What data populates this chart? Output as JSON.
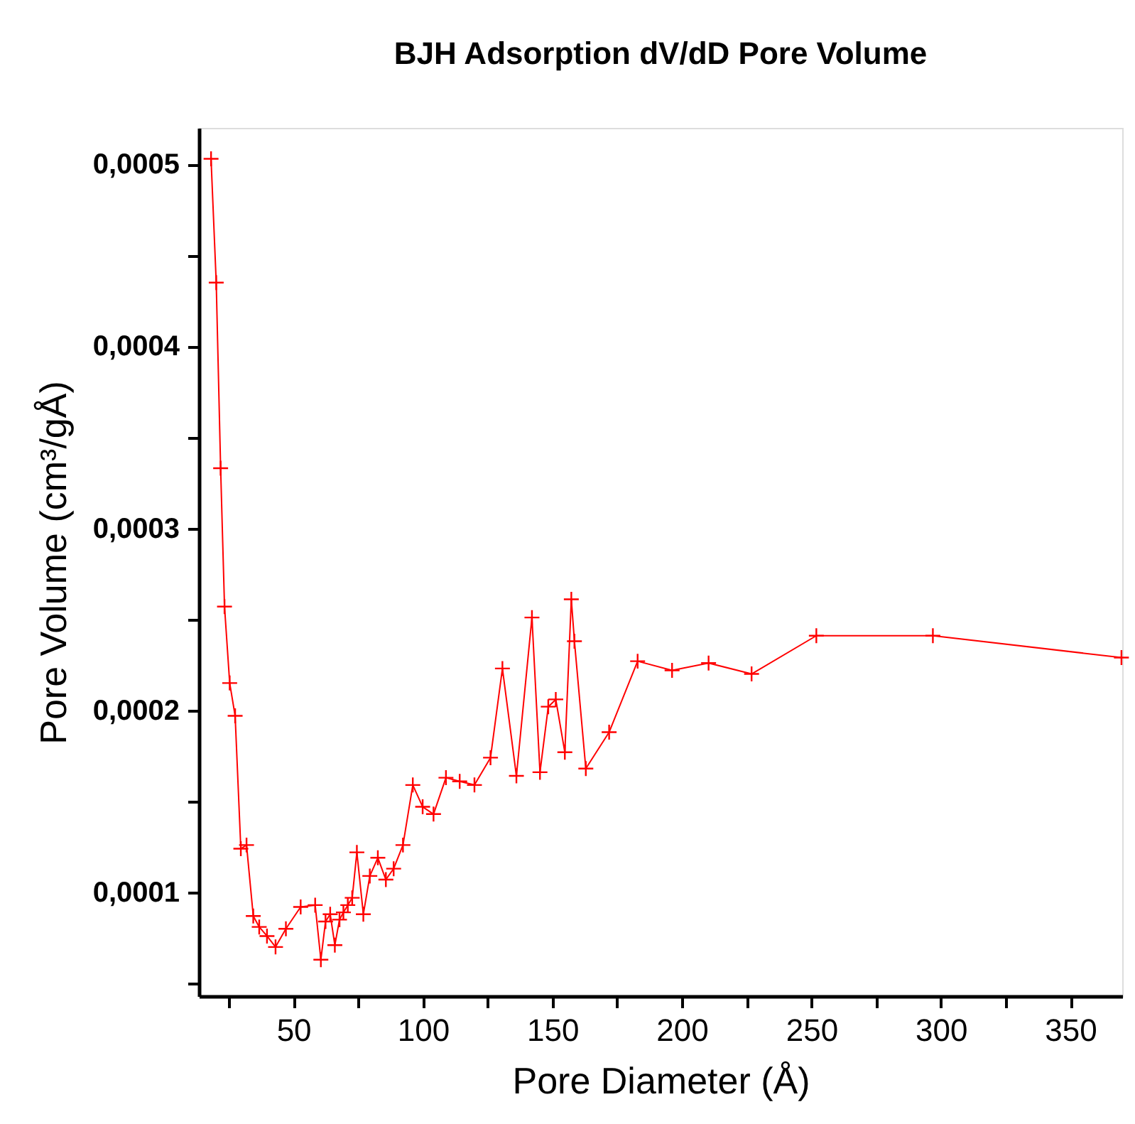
{
  "chart_data": {
    "type": "line",
    "title": "BJH Adsorption dV/dD Pore Volume",
    "xlabel": "Pore Diameter (Å)",
    "ylabel": "Pore Volume (cm³/gÅ)",
    "x": [
      18.2,
      20.2,
      21.9,
      23.4,
      25.4,
      27.5,
      29.7,
      31.9,
      34.5,
      36.8,
      39.8,
      43.1,
      47.1,
      52.8,
      58.4,
      60.6,
      62.4,
      64.2,
      66.0,
      67.8,
      69.3,
      71.0,
      72.7,
      74.5,
      77.0,
      79.5,
      82.6,
      85.7,
      88.7,
      92.3,
      96.1,
      99.9,
      104.1,
      108.9,
      114.2,
      119.9,
      126.1,
      130.7,
      136.1,
      142.1,
      145.2,
      148.4,
      151.3,
      154.8,
      157.3,
      158.5,
      162.9,
      171.9,
      182.9,
      196.2,
      210.3,
      226.9,
      251.9,
      296.9,
      369.7
    ],
    "series": [
      {
        "color": "#ff0000",
        "values": [
          0.000503,
          0.000435,
          0.000333,
          0.000257,
          0.000215,
          0.000197,
          0.000124,
          0.000126,
          8.7e-05,
          8.1e-05,
          7.6e-05,
          7e-05,
          8e-05,
          9.2e-05,
          9.3e-05,
          6.3e-05,
          8.4e-05,
          8.8e-05,
          7.1e-05,
          8.5e-05,
          8.9e-05,
          9.3e-05,
          9.7e-05,
          0.000122,
          8.8e-05,
          0.000109,
          0.000119,
          0.000107,
          0.000113,
          0.000126,
          0.000159,
          0.000147,
          0.000143,
          0.000163,
          0.000161,
          0.000159,
          0.000174,
          0.000223,
          0.000164,
          0.000251,
          0.000166,
          0.000202,
          0.000206,
          0.000177,
          0.000261,
          0.000238,
          0.000168,
          0.000188,
          0.000227,
          0.000222,
          0.000226,
          0.00022,
          0.000241,
          0.000241,
          0.000229
        ]
      }
    ],
    "xlim": [
      13.5,
      370
    ],
    "xticks": [
      {
        "value": 25,
        "label": null
      },
      50,
      {
        "value": 75,
        "label": null
      },
      100,
      {
        "value": 125,
        "label": null
      },
      150,
      {
        "value": 175,
        "label": null
      },
      200,
      {
        "value": 225,
        "label": null
      },
      250,
      {
        "value": 275,
        "label": null
      },
      300,
      {
        "value": 325,
        "label": null
      },
      350
    ],
    "ylim": [
      4.3e-05,
      0.00052
    ],
    "yticks": [
      {
        "value": 5e-05,
        "label": null
      },
      {
        "value": 0.0001,
        "label": "0,0001"
      },
      {
        "value": 0.00015,
        "label": null
      },
      {
        "value": 0.0002,
        "label": "0,0002"
      },
      {
        "value": 0.00025,
        "label": null
      },
      {
        "value": 0.0003,
        "label": "0,0003"
      },
      {
        "value": 0.00035,
        "label": null
      },
      {
        "value": 0.0004,
        "label": "0,0004"
      },
      {
        "value": 0.00045,
        "label": null
      },
      {
        "value": 0.0005,
        "label": "0,0005"
      }
    ],
    "marker": "cross",
    "line_style": "solid"
  }
}
